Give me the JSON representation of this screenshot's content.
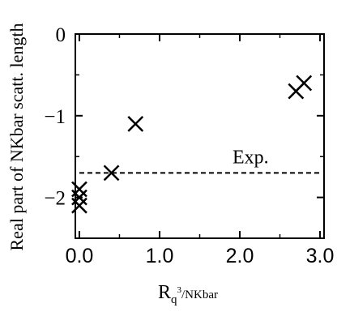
{
  "chart_data": {
    "type": "scatter",
    "xlabel": {
      "main": "R",
      "sub_before": "q",
      "sup": "3",
      "sub_after": "/NKbar"
    },
    "ylabel": "Real part of NKbar scatt. length",
    "xlim": [
      -0.05,
      3.05
    ],
    "ylim": [
      -2.5,
      0
    ],
    "x_ticks": [
      0.0,
      1.0,
      2.0,
      3.0
    ],
    "x_tick_labels": [
      "0.0",
      "1.0",
      "2.0",
      "3.0"
    ],
    "y_ticks": [
      0,
      -1,
      -2
    ],
    "y_tick_labels": [
      "0",
      "−1",
      "−2"
    ],
    "marker": "x",
    "points": [
      {
        "x": 0.0,
        "y": -1.9
      },
      {
        "x": 0.0,
        "y": -2.0
      },
      {
        "x": 0.0,
        "y": -2.1
      },
      {
        "x": 0.4,
        "y": -1.7
      },
      {
        "x": 0.7,
        "y": -1.1
      },
      {
        "x": 2.7,
        "y": -0.7
      },
      {
        "x": 2.8,
        "y": -0.6
      }
    ],
    "reference_line": {
      "y": -1.7,
      "style": "dashed",
      "label": "Exp."
    },
    "grid": false,
    "colors": {
      "marker": "#000000",
      "axis": "#000000",
      "background": "#ffffff"
    }
  }
}
